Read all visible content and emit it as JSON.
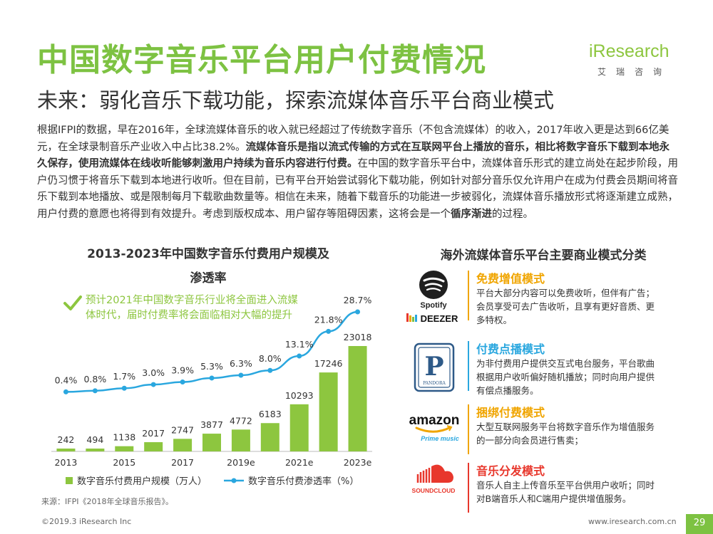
{
  "header": {
    "title": "中国数字音乐平台用户付费情况",
    "subtitle": "未来：弱化音乐下载功能，探索流媒体音乐平台商业模式",
    "logo_text": "iResearch",
    "logo_sub": "艾瑞咨询"
  },
  "paragraph": {
    "p1": "根据IFPI的数据，早在2016年，全球流媒体音乐的收入就已经超过了传统数字音乐（不包含流媒体）的收入，2017年收入更是达到66亿美元，在全球录制音乐产业收入中占比38.2%。",
    "p2_bold": "流媒体音乐是指以流式传输的方式在互联网平台上播放的音乐，相比将数字音乐下载到本地永久保存，使用流媒体在线收听能够刺激用户持续为音乐内容进行付费。",
    "p3": "在中国的数字音乐平台中，流媒体音乐形式的建立尚处在起步阶段，用户仍习惯于将音乐下载到本地进行收听。但在目前，已有平台开始尝试弱化下载功能，例如针对部分音乐仅允许用户在成为付费会员期间将音乐下载到本地播放、或是限制每月下载歌曲数量等。相信在未来，随着下载音乐的功能进一步被弱化，流媒体音乐播放形式将逐渐建立成熟，用户付费的意愿也将得到有效提升。考虑到版权成本、用户留存等阻碍因素，这将会是一个",
    "p4_bold": "循序渐进",
    "p5": "的过程。"
  },
  "chart_data": {
    "type": "bar",
    "title_line1": "2013-2023年中国数字音乐付费用户规模及",
    "title_line2": "渗透率",
    "categories": [
      "2013",
      "2014",
      "2015",
      "2016",
      "2017",
      "2018",
      "2019e",
      "2020e",
      "2021e",
      "2022e",
      "2023e"
    ],
    "tick_labels": [
      "2013",
      "",
      "2015",
      "",
      "2017",
      "",
      "2019e",
      "",
      "2021e",
      "",
      "2023e"
    ],
    "series": [
      {
        "name": "数字音乐付费用户规模（万人）",
        "kind": "bar",
        "values": [
          242,
          494,
          1138,
          2017,
          2747,
          3877,
          4772,
          6183,
          10293,
          17246,
          23018
        ]
      },
      {
        "name": "数字音乐付费渗透率（%）",
        "kind": "line",
        "values": [
          0.4,
          0.8,
          1.7,
          3.0,
          3.9,
          5.3,
          6.3,
          8.0,
          13.1,
          21.8,
          28.7
        ],
        "labels": [
          "0.4%",
          "0.8%",
          "1.7%",
          "3.0%",
          "3.9%",
          "5.3%",
          "6.3%",
          "8.0%",
          "13.1%",
          "21.8%",
          "28.7%"
        ]
      }
    ],
    "colors": {
      "bar": "#8dc63f",
      "line": "#2aa7df"
    },
    "callout": "预计2021年中国数字音乐行业将全面进入流媒体时代，届时付费率将会面临相对大幅的提升"
  },
  "source": "来源：IFPI《2018年全球音乐报告》。",
  "right": {
    "title": "海外流媒体音乐平台主要商业模式分类",
    "models": [
      {
        "title": "免费增值模式",
        "desc": "平台大部分内容可以免费收听，但伴有广告；会员享受可去广告收听，且享有更好音质、更多特权。",
        "color": "#f0a500",
        "logos": [
          "Spotify",
          "DEEZER"
        ]
      },
      {
        "title": "付费点播模式",
        "desc": "为非付费用户提供交互式电台服务，平台歌曲根据用户收听偏好随机播放；同时向用户提供有偿点播服务。",
        "color": "#2aa7df",
        "logos": [
          "P",
          "PANDORA"
        ]
      },
      {
        "title": "捆绑付费模式",
        "desc": "大型互联网服务平台将数字音乐作为增值服务的一部分向会员进行售卖；",
        "color": "#f0a500",
        "logos": [
          "amazon",
          "Prime music"
        ]
      },
      {
        "title": "音乐分发模式",
        "desc": "音乐人自主上传音乐至平台供用户收听；同时对B端音乐人和C端用户提供增值服务。",
        "color": "#e8372c",
        "logos": [
          "SOUNDCLOUD"
        ]
      }
    ]
  },
  "footer": {
    "left": "©2019.3 iResearch Inc",
    "right": "www.iresearch.com.cn",
    "page": "29"
  }
}
